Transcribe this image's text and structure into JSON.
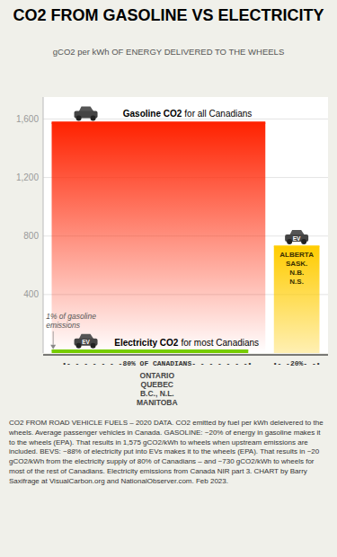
{
  "chart_data": {
    "type": "bar",
    "title": "CO2 FROM GASOLINE VS ELECTRICITY",
    "subtitle": "gCO2 per kWh OF ENERGY DELIVERED TO THE WHEELS",
    "categories": [
      null,
      null,
      null
    ],
    "values": [
      1575,
      730,
      20
    ],
    "colors": [
      "#ff2200",
      "#ffcc00",
      "#77cc00"
    ],
    "ylim": [
      0,
      1750
    ],
    "yticks": [
      400,
      800,
      {
        "value": 1200,
        "label": "1,200"
      },
      {
        "value": 1600,
        "label": "1,600"
      }
    ],
    "grid": true,
    "tick_labels": "y",
    "data_labels": false,
    "annotations": [
      "Gasoline CO2",
      "for all Canadians",
      "Electricity CO2",
      "for most Canadians",
      "1% of gasoline\nemissions",
      "ALBERTA\nSASK.\nN.B.\nN.S.",
      "ONTARIO\nQUEBEC\nB.C., N.L.\nMANITOBA",
      "•- - - - - - -80% OF CANADIANS- - - - - - -•",
      "•- -20%- -•",
      "EV",
      "EV",
      "CO2 FROM ROAD VEHICLE FUELS – 2020 DATA. CO2 emitted by fuel per kWh deleivered to the wheels. Average passenger vehicles in Canada. GASOLINE: ~20% of energy in gasoline makes it to the wheels (EPA). That results in 1,575 gCO2/kWh to wheels when upstream emissions are included. BEVS: ~88% of electricity put into EVs makes it to the wheels (EPA). That results in ~20 gCO2/kWh from the electricity supply of 80% of Canadians – and ~730 gCO2/kWh to wheels for most of the rest of Canadians. Electricity emissions from Canada NIR part 3. CHART by Barry Saxifrage at VisualCarbon.org and NationalObserver.com. Feb 2023."
    ]
  }
}
